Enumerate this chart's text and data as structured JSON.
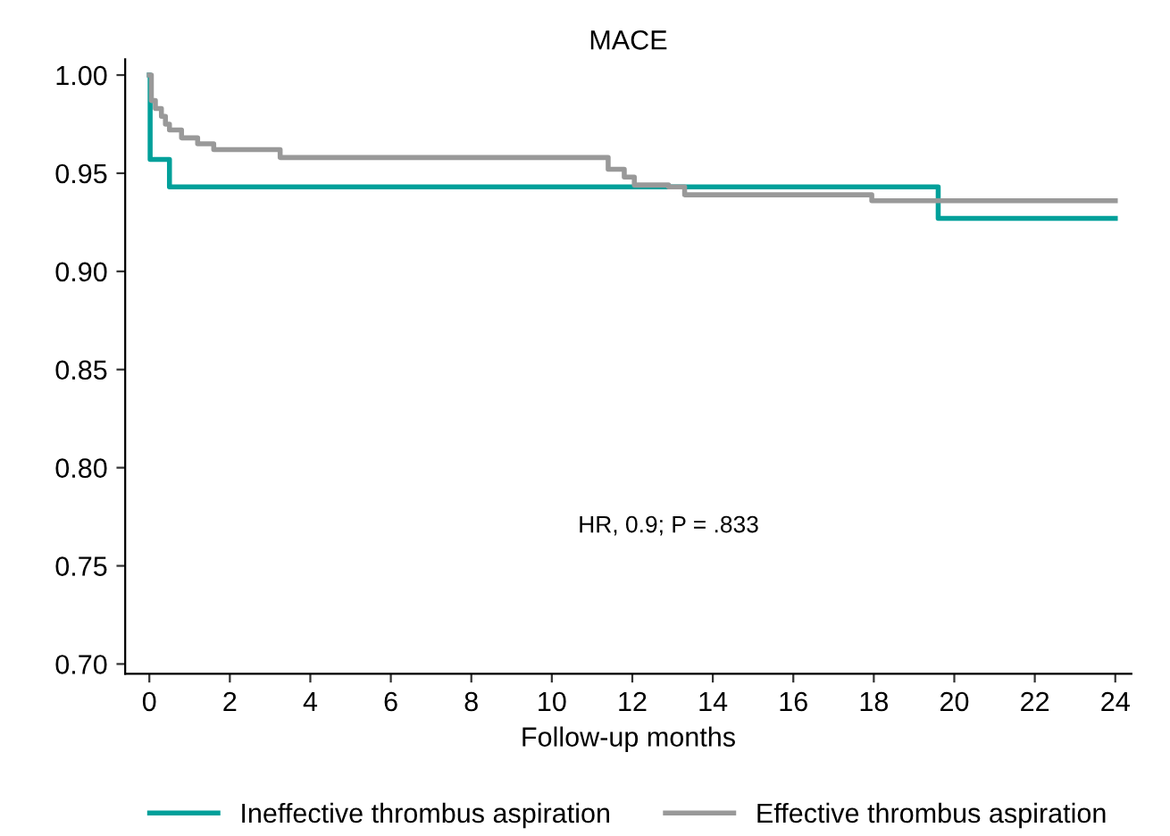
{
  "chart_data": {
    "type": "step",
    "title": "MACE",
    "xlabel": "Follow-up months",
    "xlim": [
      -0.6,
      24.4
    ],
    "ylim": [
      0.695,
      1.008
    ],
    "xticks": [
      0,
      2,
      4,
      6,
      8,
      10,
      12,
      14,
      16,
      18,
      20,
      22,
      24
    ],
    "yticks": [
      {
        "value": 0.7,
        "label": "0.70"
      },
      {
        "value": 0.75,
        "label": "0.75"
      },
      {
        "value": 0.8,
        "label": "0.80"
      },
      {
        "value": 0.85,
        "label": "0.85"
      },
      {
        "value": 0.9,
        "label": "0.90"
      },
      {
        "value": 0.95,
        "label": "0.95"
      },
      {
        "value": 1.0,
        "label": "1.00"
      }
    ],
    "grid": false,
    "legend": "bottom",
    "marker": "none",
    "line_style": "solid",
    "annotations": [
      "HR, 0.9; P = .833"
    ],
    "series": [
      {
        "name": "Ineffective thrombus aspiration",
        "color": "#00a09a",
        "x": [
          0,
          0.02,
          0.5,
          19.6,
          24
        ],
        "values": [
          1.0,
          0.957,
          0.943,
          0.927,
          0.927
        ]
      },
      {
        "name": "Effective thrombus aspiration",
        "color": "#999999",
        "x": [
          0,
          0.05,
          0.15,
          0.3,
          0.4,
          0.5,
          0.8,
          1.2,
          1.6,
          3.25,
          11.4,
          11.8,
          12.05,
          12.9,
          13.3,
          17.95,
          24
        ],
        "values": [
          1.0,
          0.987,
          0.983,
          0.979,
          0.975,
          0.972,
          0.968,
          0.965,
          0.962,
          0.958,
          0.952,
          0.948,
          0.944,
          0.943,
          0.939,
          0.936,
          0.936
        ]
      }
    ]
  }
}
